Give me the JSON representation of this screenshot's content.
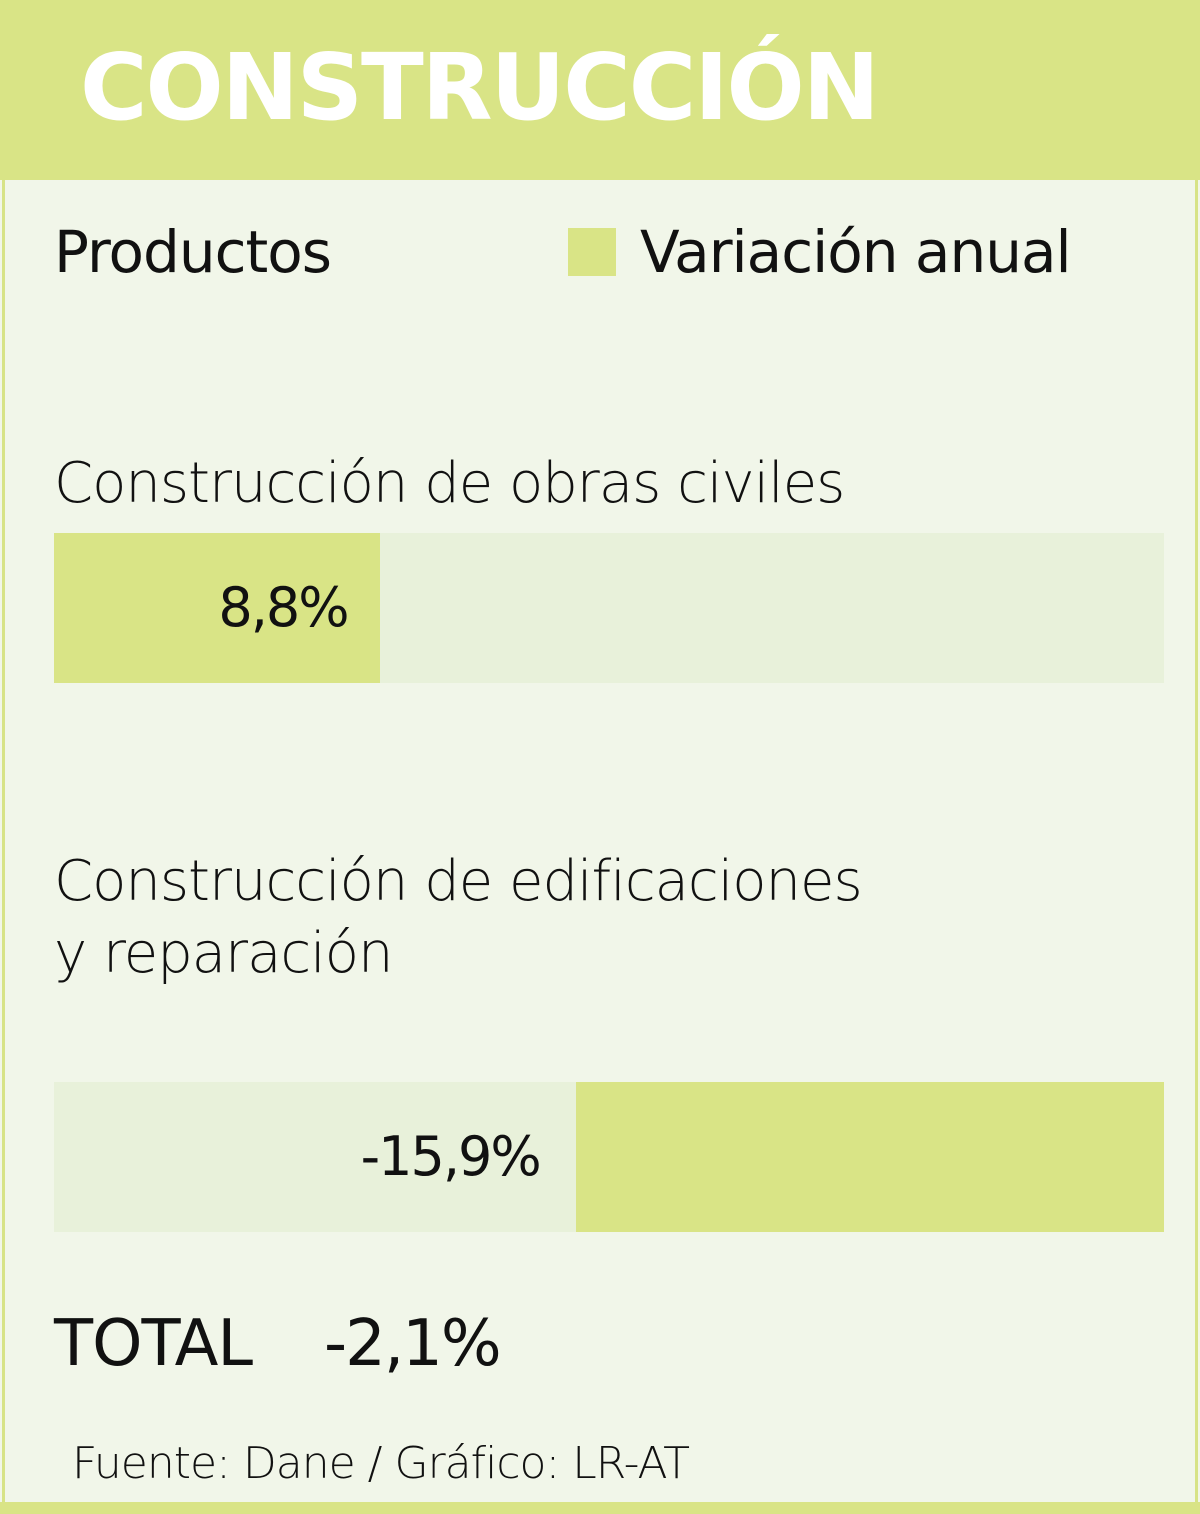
{
  "header": {
    "title": "CONSTRUCCIÓN"
  },
  "legend": {
    "products_label": "Productos",
    "series_label": "Variación anual"
  },
  "colors": {
    "accent": "#d9e486",
    "track": "#e8f1da",
    "background": "#f1f6e9"
  },
  "chart_data": {
    "type": "bar",
    "orientation": "horizontal",
    "categories": [
      "Construcción de obras civiles",
      "Construcción de edificaciones y reparación"
    ],
    "category_lines": [
      [
        "Construcción de obras civiles"
      ],
      [
        "Construcción de edificaciones",
        "y reparación"
      ]
    ],
    "series": [
      {
        "name": "Variación anual",
        "values": [
          8.8,
          -15.9
        ]
      }
    ],
    "value_labels": [
      "8,8%",
      "-15,9%"
    ],
    "xlim": [
      -15.9,
      8.8
    ],
    "grid": false,
    "legend_position": "top-right"
  },
  "total": {
    "label": "TOTAL",
    "value": "-2,1%"
  },
  "source": "Fuente: Dane / Gráfico: LR-AT"
}
